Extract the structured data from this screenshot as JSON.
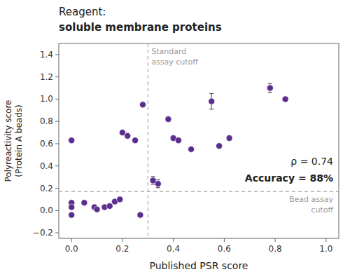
{
  "chart_data": {
    "type": "scatter",
    "title": "Reagent:",
    "subtitle": "soluble membrane proteins",
    "xlabel": "Published PSR score",
    "ylabel": "Polyreactivity score\n(Protein A beads)",
    "xlim": [
      -0.05,
      1.05
    ],
    "ylim": [
      -0.25,
      1.5
    ],
    "xticks": [
      {
        "value": 0.0,
        "label": "0.0"
      },
      0.2,
      0.4,
      0.6,
      0.8,
      {
        "value": 1.0,
        "label": "1.0"
      }
    ],
    "yticks": [
      {
        "value": -0.2,
        "label": "−0.2"
      },
      {
        "value": 0.0,
        "label": "0.0"
      },
      0.2,
      0.4,
      0.6,
      0.8,
      {
        "value": 1.0,
        "label": "1.0"
      },
      1.2,
      1.4
    ],
    "grid": false,
    "color": "#5B2D8E",
    "x": [
      0.0,
      0.0,
      0.0,
      0.0,
      0.05,
      0.09,
      0.1,
      0.13,
      0.15,
      0.17,
      0.19,
      0.2,
      0.22,
      0.25,
      0.27,
      0.28,
      0.32,
      0.34,
      0.38,
      0.4,
      0.42,
      0.47,
      0.55,
      0.58,
      0.62,
      0.78,
      0.84
    ],
    "values": [
      0.63,
      0.07,
      0.03,
      -0.04,
      0.07,
      0.03,
      0.01,
      0.03,
      0.04,
      0.08,
      0.1,
      0.7,
      0.67,
      0.63,
      -0.04,
      0.95,
      0.27,
      0.24,
      0.82,
      0.65,
      0.63,
      0.55,
      0.98,
      0.58,
      0.65,
      1.1,
      1.0
    ],
    "errors": [
      0.0,
      0.0,
      0.0,
      0.0,
      0.0,
      0.0,
      0.0,
      0.0,
      0.0,
      0.0,
      0.0,
      0.0,
      0.0,
      0.0,
      0.0,
      0.0,
      0.035,
      0.035,
      0.0,
      0.0,
      0.0,
      0.0,
      0.07,
      0.0,
      0.0,
      0.04,
      0.0
    ],
    "reference_lines": [
      {
        "axis": "x",
        "value": 0.3,
        "color": "#aaaaaa",
        "label": "Standard\nassay cutoff",
        "label_color": "#999999"
      },
      {
        "axis": "y",
        "value": 0.17,
        "color": "#aaaaaa",
        "label": "Bead assay\ncutoff",
        "label_color": "#999999"
      }
    ],
    "annotations": [
      {
        "text": "ρ = 0.74"
      },
      {
        "text": "Accuracy = 88%"
      }
    ]
  }
}
